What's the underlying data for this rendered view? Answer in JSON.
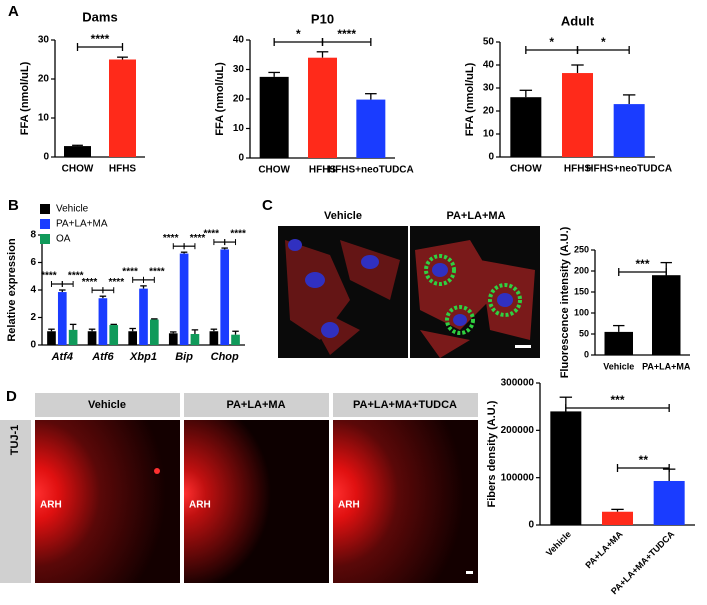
{
  "panel_labels": [
    "A",
    "B",
    "C",
    "D"
  ],
  "images": {
    "c_headers": [
      "Vehicle",
      "PA+LA+MA"
    ],
    "d_headers": [
      "Vehicle",
      "PA+LA+MA",
      "PA+LA+MA+TUDCA"
    ],
    "d_side_label": "TUJ-1",
    "d_region_label": "ARH"
  },
  "chart_data": [
    {
      "type": "bar",
      "title": "Dams",
      "ylabel": "FFA (nmol/uL)",
      "categories": [
        "CHOW",
        "HFHS"
      ],
      "values": [
        2.8,
        25
      ],
      "errors": [
        0.2,
        0.6
      ],
      "colors": [
        "#000000",
        "#ff2a1a"
      ],
      "ylim": [
        0,
        30
      ],
      "yticks": [
        0,
        10,
        20,
        30
      ],
      "annotations": [
        "****"
      ]
    },
    {
      "type": "bar",
      "title": "P10",
      "ylabel": "FFA (nmol/uL)",
      "categories": [
        "CHOW",
        "HFHS",
        "HFHS+neoTUDCA"
      ],
      "values": [
        27.5,
        34,
        19.8
      ],
      "errors": [
        1.5,
        2,
        2
      ],
      "colors": [
        "#000000",
        "#ff2a1a",
        "#1a3cff"
      ],
      "ylim": [
        0,
        40
      ],
      "yticks": [
        0,
        10,
        20,
        30,
        40
      ],
      "annotations": [
        "*",
        "****"
      ]
    },
    {
      "type": "bar",
      "title": "Adult",
      "ylabel": "FFA (nmol/uL)",
      "categories": [
        "CHOW",
        "HFHS",
        "HFHS+neoTUDCA"
      ],
      "values": [
        26,
        36.5,
        23
      ],
      "errors": [
        3,
        3.5,
        4
      ],
      "colors": [
        "#000000",
        "#ff2a1a",
        "#1a3cff"
      ],
      "ylim": [
        0,
        50
      ],
      "yticks": [
        0,
        10,
        20,
        30,
        40,
        50
      ],
      "annotations": [
        "*",
        "*"
      ]
    },
    {
      "type": "grouped-bar",
      "ylabel": "Relative expression",
      "categories": [
        "Atf4",
        "Atf6",
        "Xbp1",
        "Bip",
        "Chop"
      ],
      "series": [
        {
          "name": "Vehicle",
          "color": "#000000",
          "values": [
            1,
            1,
            1,
            0.85,
            1
          ],
          "errors": [
            0.15,
            0.15,
            0.2,
            0.1,
            0.15
          ]
        },
        {
          "name": "PA+LA+MA",
          "color": "#1a3cff",
          "values": [
            3.85,
            3.4,
            4.1,
            6.65,
            6.95
          ],
          "errors": [
            0.15,
            0.15,
            0.2,
            0.1,
            0.1
          ]
        },
        {
          "name": "OA",
          "color": "#109a5a",
          "values": [
            1.1,
            1.45,
            1.85,
            0.8,
            0.75
          ],
          "errors": [
            0.4,
            0.05,
            0.05,
            0.3,
            0.25
          ]
        }
      ],
      "ylim": [
        0,
        8
      ],
      "yticks": [
        0,
        2,
        4,
        6,
        8
      ],
      "annotations": [
        "****",
        "****",
        "****",
        "****",
        "****",
        "****",
        "****",
        "****",
        "****",
        "****"
      ]
    },
    {
      "type": "bar",
      "ylabel": "Fluorescence intensity (A.U.)",
      "categories": [
        "Vehicle",
        "PA+LA+MA"
      ],
      "values": [
        55,
        190
      ],
      "errors": [
        15,
        30
      ],
      "colors": [
        "#000000",
        "#000000"
      ],
      "ylim": [
        0,
        250
      ],
      "yticks": [
        0,
        50,
        100,
        150,
        200,
        250
      ],
      "annotations": [
        "***"
      ]
    },
    {
      "type": "bar",
      "ylabel": "Fibers density (A.U.)",
      "categories": [
        "Vehicle",
        "PA+LA+MA",
        "PA+LA+MA+TUDCA"
      ],
      "values": [
        240000,
        28000,
        93000
      ],
      "errors": [
        30000,
        5000,
        25000
      ],
      "colors": [
        "#000000",
        "#ff2a1a",
        "#1a3cff"
      ],
      "ylim": [
        0,
        300000
      ],
      "yticks": [
        0,
        100000,
        200000,
        300000
      ],
      "annotations": [
        "***",
        "**"
      ]
    }
  ]
}
